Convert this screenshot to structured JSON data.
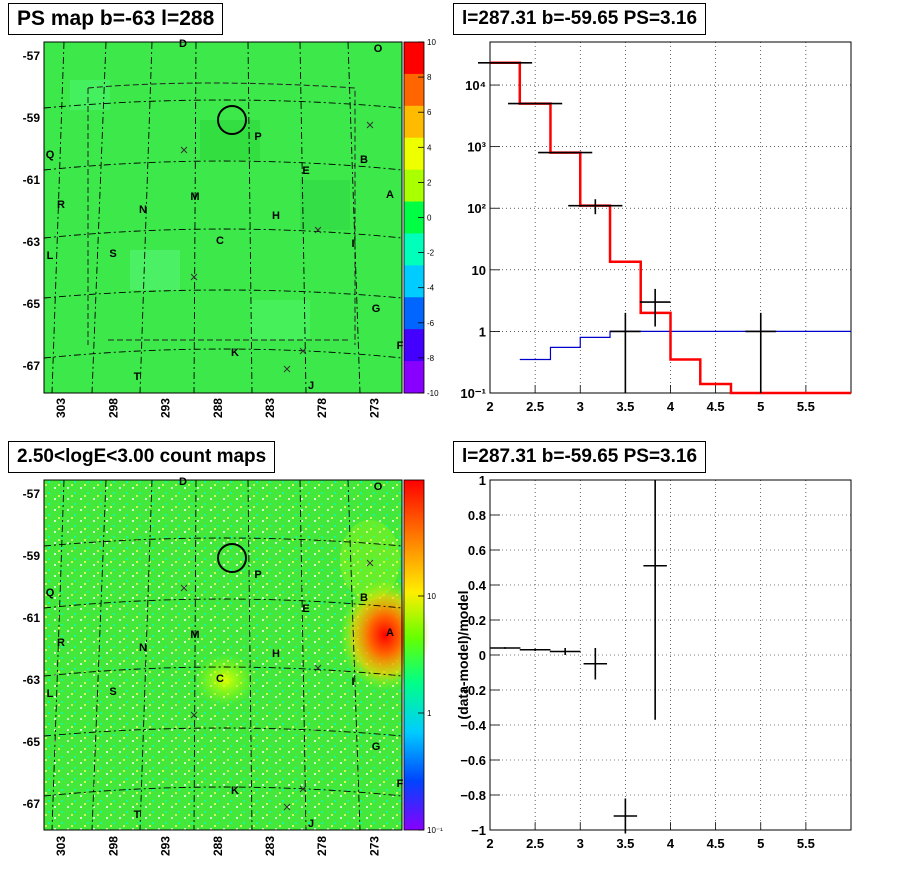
{
  "titles": {
    "map1": "PS map b=-63 l=288",
    "spec": "l=287.31 b=-59.65 PS=3.16",
    "map2": "2.50<logE<3.00 count maps",
    "resid": "l=287.31 b=-59.65 PS=3.16"
  },
  "map_axes": {
    "b_ticks": [
      "-57",
      "-59",
      "-61",
      "-63",
      "-65",
      "-67"
    ],
    "l_ticks": [
      "303",
      "298",
      "293",
      "288",
      "283",
      "278",
      "273"
    ]
  },
  "map_labels": [
    "D",
    "O",
    "P",
    "Q",
    "B",
    "E",
    "A",
    "R",
    "N",
    "M",
    "H",
    "I",
    "L",
    "S",
    "C",
    "G",
    "K",
    "F",
    "T",
    "J"
  ],
  "colorbar_top": {
    "ticks": [
      "10",
      "8",
      "6",
      "4",
      "2",
      "0",
      "-2",
      "-4",
      "-6",
      "-8",
      "-10"
    ],
    "colors": [
      "#ff0000",
      "#ff6600",
      "#ffbb00",
      "#eeff00",
      "#aaff00",
      "#00ff44",
      "#00ffbb",
      "#00ccff",
      "#0066ff",
      "#4400ff",
      "#8800ff"
    ]
  },
  "colorbar_bottom": {
    "ticks": [
      "10",
      "1",
      "10⁻¹"
    ]
  },
  "chart_data": [
    {
      "type": "line",
      "yscale": "log",
      "xlim": [
        2,
        6
      ],
      "ylim": [
        0.1,
        50000
      ],
      "x_ticks": [
        "2",
        "2.5",
        "3",
        "3.5",
        "4",
        "4.5",
        "5",
        "5.5"
      ],
      "y_ticks": [
        "10⁻¹",
        "1",
        "10",
        "10²",
        "10³",
        "10⁴"
      ],
      "grid": true,
      "series": [
        {
          "color": "#ff0000",
          "bins": [
            [
              2.0,
              2.33,
              23000
            ],
            [
              2.33,
              2.67,
              5000
            ],
            [
              2.67,
              3.0,
              800
            ],
            [
              3.0,
              3.33,
              110
            ],
            [
              3.33,
              3.67,
              13.5
            ],
            [
              3.67,
              4.0,
              2.0
            ],
            [
              4.0,
              4.33,
              0.35
            ],
            [
              4.33,
              4.67,
              0.14
            ],
            [
              4.67,
              5.0,
              0.1
            ],
            [
              5.0,
              6.0,
              0.1
            ]
          ]
        },
        {
          "color": "#0000cc",
          "bins": [
            [
              2.33,
              2.67,
              0.35
            ],
            [
              2.67,
              3.0,
              0.55
            ],
            [
              3.0,
              3.33,
              0.8
            ],
            [
              3.33,
              3.67,
              1.0
            ],
            [
              3.67,
              4.0,
              1.0
            ],
            [
              4.0,
              6.0,
              1.0
            ]
          ]
        },
        {
          "color": "#000000",
          "points": [
            [
              2.167,
              23000,
              0.3,
              5,
              5
            ],
            [
              2.5,
              5000,
              0.3,
              10,
              10
            ],
            [
              2.833,
              800,
              0.3,
              20,
              20
            ],
            [
              3.167,
              110,
              0.3,
              30,
              30
            ],
            [
              3.5,
              1.0,
              0.17,
              0.9,
              1.0
            ],
            [
              3.83,
              3.0,
              0.17,
              1.8,
              1.9
            ],
            [
              5.0,
              1.0,
              0.17,
              0.9,
              1.0
            ]
          ]
        }
      ]
    },
    {
      "type": "scatter",
      "ylabel": "(data-model)/model",
      "xlim": [
        2,
        6
      ],
      "ylim": [
        -1,
        1
      ],
      "x_ticks": [
        "2",
        "2.5",
        "3",
        "3.5",
        "4",
        "4.5",
        "5",
        "5.5"
      ],
      "y_ticks": [
        "−1",
        "−0.8",
        "−0.6",
        "−0.4",
        "−0.2",
        "0",
        "0.2",
        "0.4",
        "0.6",
        "0.8",
        "1"
      ],
      "grid": true,
      "points": [
        [
          2.167,
          0.04,
          0.17,
          0.005,
          0.005
        ],
        [
          2.5,
          0.03,
          0.17,
          0.007,
          0.007
        ],
        [
          2.833,
          0.02,
          0.17,
          0.02,
          0.02
        ],
        [
          3.167,
          -0.05,
          0.13,
          0.09,
          0.09
        ],
        [
          3.5,
          -0.92,
          0.13,
          0.1,
          0.1
        ],
        [
          3.83,
          0.51,
          0.13,
          0.88,
          0.5
        ]
      ]
    }
  ]
}
